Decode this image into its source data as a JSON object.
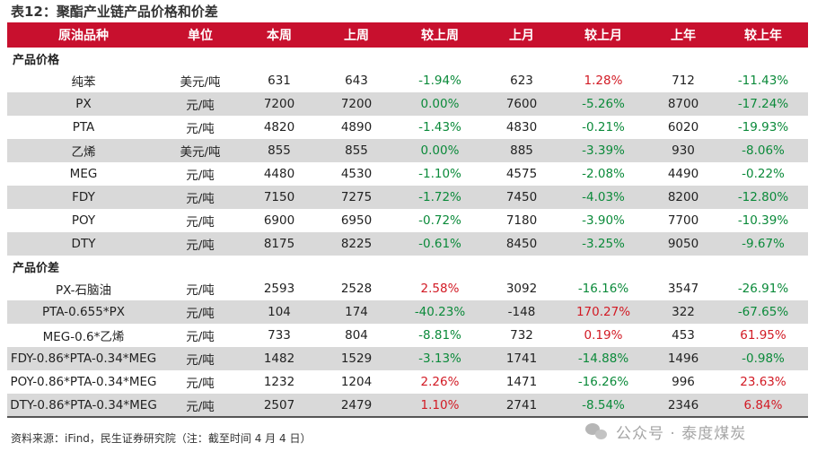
{
  "title": "表12：聚酯产业链产品价格和价差",
  "columns": [
    "原油品种",
    "单位",
    "本周",
    "上周",
    "较上周",
    "上月",
    "较上月",
    "上年",
    "较上年"
  ],
  "sections": [
    {
      "label": "产品价格",
      "rows": [
        {
          "name": "纯苯",
          "unit": "美元/吨",
          "this_week": "631",
          "last_week": "643",
          "wow": "-1.94%",
          "last_month": "623",
          "mom": "1.28%",
          "last_year": "712",
          "yoy": "-11.43%"
        },
        {
          "name": "PX",
          "unit": "元/吨",
          "this_week": "7200",
          "last_week": "7200",
          "wow": "0.00%",
          "last_month": "7600",
          "mom": "-5.26%",
          "last_year": "8700",
          "yoy": "-17.24%"
        },
        {
          "name": "PTA",
          "unit": "元/吨",
          "this_week": "4820",
          "last_week": "4890",
          "wow": "-1.43%",
          "last_month": "4830",
          "mom": "-0.21%",
          "last_year": "6020",
          "yoy": "-19.93%"
        },
        {
          "name": "乙烯",
          "unit": "美元/吨",
          "this_week": "855",
          "last_week": "855",
          "wow": "0.00%",
          "last_month": "885",
          "mom": "-3.39%",
          "last_year": "930",
          "yoy": "-8.06%"
        },
        {
          "name": "MEG",
          "unit": "元/吨",
          "this_week": "4480",
          "last_week": "4530",
          "wow": "-1.10%",
          "last_month": "4575",
          "mom": "-2.08%",
          "last_year": "4490",
          "yoy": "-0.22%"
        },
        {
          "name": "FDY",
          "unit": "元/吨",
          "this_week": "7150",
          "last_week": "7275",
          "wow": "-1.72%",
          "last_month": "7450",
          "mom": "-4.03%",
          "last_year": "8200",
          "yoy": "-12.80%"
        },
        {
          "name": "POY",
          "unit": "元/吨",
          "this_week": "6900",
          "last_week": "6950",
          "wow": "-0.72%",
          "last_month": "7180",
          "mom": "-3.90%",
          "last_year": "7700",
          "yoy": "-10.39%"
        },
        {
          "name": "DTY",
          "unit": "元/吨",
          "this_week": "8175",
          "last_week": "8225",
          "wow": "-0.61%",
          "last_month": "8450",
          "mom": "-3.25%",
          "last_year": "9050",
          "yoy": "-9.67%"
        }
      ]
    },
    {
      "label": "产品价差",
      "rows": [
        {
          "name": "PX-石脑油",
          "unit": "元/吨",
          "this_week": "2593",
          "last_week": "2528",
          "wow": "2.58%",
          "last_month": "3092",
          "mom": "-16.16%",
          "last_year": "3547",
          "yoy": "-26.91%"
        },
        {
          "name": "PTA-0.655*PX",
          "unit": "元/吨",
          "this_week": "104",
          "last_week": "174",
          "wow": "-40.23%",
          "last_month": "-148",
          "mom": "170.27%",
          "last_year": "322",
          "yoy": "-67.65%"
        },
        {
          "name": "MEG-0.6*乙烯",
          "unit": "元/吨",
          "this_week": "733",
          "last_week": "804",
          "wow": "-8.81%",
          "last_month": "732",
          "mom": "0.19%",
          "last_year": "453",
          "yoy": "61.95%"
        },
        {
          "name": "FDY-0.86*PTA-0.34*MEG",
          "unit": "元/吨",
          "this_week": "1482",
          "last_week": "1529",
          "wow": "-3.13%",
          "last_month": "1741",
          "mom": "-14.88%",
          "last_year": "1496",
          "yoy": "-0.98%"
        },
        {
          "name": "POY-0.86*PTA-0.34*MEG",
          "unit": "元/吨",
          "this_week": "1232",
          "last_week": "1204",
          "wow": "2.26%",
          "last_month": "1471",
          "mom": "-16.26%",
          "last_year": "996",
          "yoy": "23.63%"
        },
        {
          "name": "DTY-0.86*PTA-0.34*MEG",
          "unit": "元/吨",
          "this_week": "2507",
          "last_week": "2479",
          "wow": "1.10%",
          "last_month": "2741",
          "mom": "-8.54%",
          "last_year": "2346",
          "yoy": "6.84%"
        }
      ]
    }
  ],
  "source": "资料来源：iFind，民生证券研究院（注：截至时间 4 月 4 日）",
  "watermark": {
    "icon": "wechat-icon",
    "text": "公众号 · 泰度煤炭"
  },
  "colors": {
    "header_bg": "#c8102e",
    "positive": "#d21a24",
    "negative": "#0b8a3a",
    "alt_row": "#d9d9d9"
  }
}
